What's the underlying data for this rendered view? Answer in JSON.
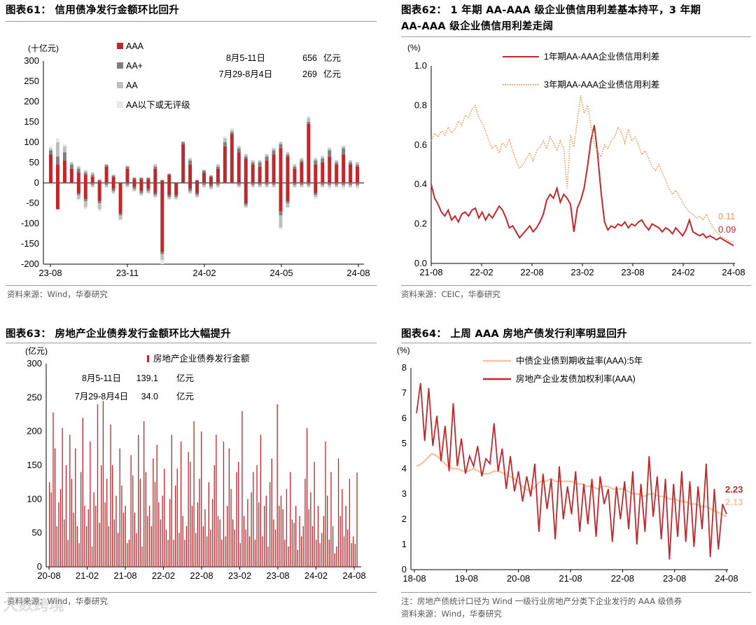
{
  "watermark": "大数跨境",
  "panels": [
    {
      "title": "图表61：  信用债净发行金额环比回升",
      "source": "资料来源：Wind，华泰研究",
      "note": "",
      "chart_data": {
        "type": "bar",
        "stacked": true,
        "unit_label": "(十亿元)",
        "ylim": [
          -200,
          300
        ],
        "yticks": [
          "300",
          "250",
          "200",
          "150",
          "100",
          "50",
          "0",
          "-50",
          "-100",
          "-150",
          "-200"
        ],
        "xtick_labels": [
          "23-08",
          "23-11",
          "24-02",
          "24-05",
          "24-08"
        ],
        "legend": [
          "AAA",
          "AA+",
          "AA",
          "AA以下或无评级"
        ],
        "colors": {
          "AAA": "#c0282c",
          "AA+": "#7f7f7f",
          "AA": "#bfbfbf",
          "AA_low": "#e8e8e8"
        },
        "annotations": [
          {
            "period": "8月5-11日",
            "value": "656",
            "unit": "亿元"
          },
          {
            "period": "7月29-8月4日",
            "value": "269",
            "unit": "亿元"
          }
        ],
        "series_positive": {
          "AAA": [
            70,
            45,
            55,
            35,
            25,
            20,
            15,
            5,
            40,
            15,
            0,
            35,
            10,
            10,
            10,
            35,
            5,
            20,
            0,
            95,
            45,
            5,
            25,
            15,
            35,
            90,
            120,
            75,
            60,
            45,
            40,
            55,
            70,
            85,
            65,
            35,
            50,
            145,
            45,
            50,
            65,
            45,
            70,
            45,
            40
          ],
          "AA+": [
            10,
            20,
            20,
            10,
            10,
            5,
            5,
            2,
            4,
            3,
            0,
            5,
            2,
            2,
            2,
            5,
            2,
            2,
            0,
            5,
            10,
            2,
            5,
            2,
            5,
            10,
            5,
            10,
            5,
            5,
            10,
            10,
            10,
            10,
            5,
            5,
            5,
            5,
            10,
            10,
            15,
            5,
            15,
            5,
            5
          ],
          "AA": [
            5,
            35,
            15,
            5,
            5,
            5,
            5,
            2,
            2,
            2,
            0,
            2,
            2,
            2,
            2,
            5,
            1,
            1,
            0,
            2,
            5,
            1,
            2,
            2,
            5,
            10,
            5,
            5,
            5,
            5,
            5,
            5,
            5,
            5,
            5,
            5,
            5,
            10,
            5,
            5,
            5,
            5,
            5,
            5,
            5
          ],
          "AA_low": [
            5,
            10,
            5,
            3,
            3,
            2,
            2,
            1,
            1,
            1,
            0,
            1,
            1,
            1,
            1,
            2,
            1,
            1,
            0,
            1,
            2,
            1,
            1,
            1,
            2,
            5,
            5,
            3,
            3,
            2,
            2,
            2,
            2,
            2,
            2,
            2,
            2,
            5,
            2,
            3,
            3,
            2,
            2,
            2,
            2
          ]
        },
        "series_negative": {
          "AAA": [
            0,
            65,
            0,
            0,
            25,
            40,
            0,
            45,
            0,
            15,
            75,
            0,
            10,
            20,
            15,
            25,
            170,
            30,
            30,
            0,
            15,
            25,
            0,
            5,
            0,
            0,
            0,
            0,
            50,
            0,
            0,
            0,
            0,
            70,
            45,
            0,
            0,
            0,
            25,
            0,
            0,
            0,
            0,
            0,
            0
          ],
          "AA+": [
            0,
            0,
            0,
            0,
            5,
            5,
            5,
            5,
            5,
            5,
            5,
            5,
            5,
            5,
            5,
            5,
            5,
            5,
            5,
            0,
            5,
            5,
            5,
            5,
            5,
            0,
            0,
            5,
            5,
            5,
            5,
            5,
            5,
            10,
            5,
            5,
            5,
            5,
            5,
            5,
            5,
            5,
            5,
            5,
            5
          ],
          "AA": [
            0,
            0,
            0,
            0,
            10,
            15,
            5,
            15,
            5,
            5,
            10,
            5,
            5,
            5,
            5,
            5,
            15,
            5,
            5,
            0,
            5,
            5,
            5,
            5,
            5,
            0,
            0,
            5,
            5,
            5,
            5,
            5,
            5,
            30,
            10,
            5,
            5,
            5,
            5,
            5,
            5,
            5,
            5,
            5,
            5
          ],
          "AA_low": [
            0,
            0,
            0,
            0,
            3,
            5,
            2,
            5,
            2,
            2,
            3,
            2,
            2,
            2,
            2,
            2,
            10,
            2,
            2,
            0,
            2,
            2,
            2,
            2,
            2,
            0,
            0,
            2,
            2,
            2,
            2,
            2,
            2,
            5,
            2,
            2,
            2,
            2,
            5,
            2,
            5,
            2,
            5,
            2,
            5
          ]
        }
      }
    },
    {
      "title": "图表62：  1 年期  AA-AAA  级企业债信用利差基本持平，3 年期",
      "title2": "AA-AAA 级企业债信用利差走阔",
      "source": "资料来源：CEIC，华泰研究",
      "note": "",
      "chart_data": {
        "type": "line",
        "unit_label": "(%)",
        "ylim": [
          0.0,
          1.0
        ],
        "yticks": [
          "1.0",
          "0.8",
          "0.6",
          "0.4",
          "0.2",
          "0.0"
        ],
        "xtick_labels": [
          "21-08",
          "22-02",
          "22-08",
          "23-02",
          "23-08",
          "24-02",
          "24-08"
        ],
        "series": [
          {
            "name": "1年期AA-AAA企业债信用利差",
            "style": "solid",
            "color": "#c0282c",
            "end_label": "0.09",
            "values": [
              0.4,
              0.33,
              0.3,
              0.26,
              0.24,
              0.27,
              0.22,
              0.24,
              0.21,
              0.25,
              0.26,
              0.24,
              0.27,
              0.28,
              0.23,
              0.26,
              0.22,
              0.25,
              0.23,
              0.26,
              0.29,
              0.27,
              0.23,
              0.18,
              0.19,
              0.16,
              0.13,
              0.15,
              0.17,
              0.19,
              0.16,
              0.18,
              0.21,
              0.25,
              0.32,
              0.35,
              0.33,
              0.38,
              0.31,
              0.35,
              0.33,
              0.3,
              0.16,
              0.28,
              0.32,
              0.38,
              0.49,
              0.62,
              0.7,
              0.55,
              0.36,
              0.21,
              0.17,
              0.19,
              0.18,
              0.2,
              0.19,
              0.21,
              0.18,
              0.2,
              0.19,
              0.21,
              0.22,
              0.19,
              0.17,
              0.2,
              0.19,
              0.18,
              0.16,
              0.18,
              0.17,
              0.15,
              0.18,
              0.16,
              0.14,
              0.17,
              0.22,
              0.16,
              0.15,
              0.14,
              0.15,
              0.13,
              0.14,
              0.13,
              0.12,
              0.13,
              0.12,
              0.11,
              0.1,
              0.09
            ]
          },
          {
            "name": "3年期AA-AAA企业债信用利差",
            "style": "dotted",
            "color": "#e59a5a",
            "end_label": "0.11",
            "values": [
              0.62,
              0.66,
              0.64,
              0.67,
              0.65,
              0.69,
              0.66,
              0.68,
              0.72,
              0.7,
              0.75,
              0.74,
              0.78,
              0.8,
              0.74,
              0.71,
              0.67,
              0.62,
              0.58,
              0.6,
              0.56,
              0.61,
              0.59,
              0.63,
              0.57,
              0.52,
              0.48,
              0.5,
              0.53,
              0.56,
              0.52,
              0.57,
              0.59,
              0.62,
              0.58,
              0.64,
              0.61,
              0.57,
              0.62,
              0.58,
              0.38,
              0.65,
              0.59,
              0.72,
              0.85,
              0.76,
              0.8,
              0.7,
              0.6,
              0.57,
              0.54,
              0.6,
              0.58,
              0.62,
              0.64,
              0.69,
              0.66,
              0.61,
              0.68,
              0.62,
              0.64,
              0.6,
              0.55,
              0.57,
              0.53,
              0.49,
              0.47,
              0.5,
              0.46,
              0.42,
              0.38,
              0.35,
              0.37,
              0.34,
              0.31,
              0.28,
              0.26,
              0.25,
              0.23,
              0.24,
              0.22,
              0.25,
              0.21,
              0.18,
              0.16,
              0.14,
              0.13,
              0.12,
              0.11,
              0.11
            ]
          }
        ]
      }
    },
    {
      "title": "图表63：  房地产企业债券发行金额环比大幅提升",
      "source": "资料来源：Wind，华泰研究",
      "note": "",
      "chart_data": {
        "type": "bar",
        "unit_label": "(亿元)",
        "ylim": [
          0,
          300
        ],
        "yticks": [
          "300",
          "250",
          "200",
          "150",
          "100",
          "50",
          "0"
        ],
        "xtick_labels": [
          "20-08",
          "21-02",
          "21-08",
          "22-02",
          "22-08",
          "23-02",
          "23-08",
          "24-02",
          "24-08"
        ],
        "legend": [
          "房地产企业债券发行金额"
        ],
        "color": "#c0282c",
        "annotations": [
          {
            "period": "8月5-11日",
            "value": "139.1",
            "unit": "亿元"
          },
          {
            "period": "7月29-8月4日",
            "value": "34.0",
            "unit": "亿元"
          }
        ],
        "values": [
          125,
          110,
          228,
          175,
          60,
          95,
          115,
          205,
          70,
          150,
          40,
          195,
          130,
          80,
          175,
          60,
          35,
          140,
          220,
          90,
          60,
          85,
          185,
          30,
          110,
          90,
          240,
          65,
          150,
          245,
          95,
          130,
          60,
          210,
          150,
          70,
          105,
          50,
          175,
          120,
          80,
          90,
          35,
          40,
          165,
          135,
          80,
          50,
          195,
          130,
          30,
          215,
          140,
          75,
          90,
          60,
          160,
          125,
          180,
          95,
          70,
          105,
          145,
          55,
          40,
          100,
          195,
          40,
          120,
          145,
          50,
          185,
          75,
          40,
          60,
          170,
          155,
          90,
          215,
          50,
          95,
          130,
          200,
          60,
          85,
          45,
          125,
          55,
          100,
          150,
          195,
          75,
          70,
          40,
          185,
          45,
          90,
          175,
          115,
          70,
          55,
          140,
          155,
          35,
          230,
          75,
          55,
          100,
          45,
          110,
          140,
          40,
          150,
          95,
          195,
          45,
          90,
          105,
          30,
          125,
          160,
          70,
          55,
          240,
          90,
          105,
          85,
          40,
          115,
          30,
          140,
          70,
          65,
          90,
          25,
          75,
          45,
          60,
          130,
          205,
          85,
          110,
          60,
          155,
          40,
          90,
          35,
          50,
          75,
          185,
          105,
          40,
          140,
          60,
          20,
          30,
          160,
          75,
          115,
          45,
          90,
          55,
          130,
          35,
          45,
          34,
          139
        ]
      }
    },
    {
      "title": "图表64：  上周  AAA  房地产债发行利率明显回升",
      "source": "资料来源：Wind，华泰研究",
      "note": "注：房地产债统计口径为  Wind  一级行业房地产分类下企业发行的  AAA  级债券",
      "chart_data": {
        "type": "line",
        "unit_label": "(%)",
        "ylim": [
          0,
          8
        ],
        "yticks": [
          "8",
          "7",
          "6",
          "5",
          "4",
          "3",
          "2",
          "1",
          "0"
        ],
        "xtick_labels": [
          "18-08",
          "19-08",
          "20-08",
          "21-08",
          "22-08",
          "23-08",
          "24-08"
        ],
        "series": [
          {
            "name": "中债企业债到期收益率(AAA):5年",
            "color": "#f3c6a5",
            "end_label": "2.13",
            "values": [
              4.1,
              4.2,
              4.4,
              4.6,
              4.5,
              4.3,
              4.1,
              4.0,
              4.0,
              3.9,
              3.9,
              4.0,
              3.9,
              3.8,
              3.8,
              3.9,
              3.9,
              3.8,
              3.7,
              3.6,
              3.4,
              3.2,
              3.1,
              3.3,
              3.5,
              3.5,
              3.6,
              3.5,
              3.5,
              3.5,
              3.5,
              3.4,
              3.4,
              3.3,
              3.3,
              3.2,
              3.3,
              3.3,
              3.2,
              3.2,
              3.2,
              3.1,
              3.0,
              3.0,
              2.9,
              3.0,
              3.0,
              2.9,
              2.9,
              2.8,
              2.8,
              2.7,
              2.7,
              2.6,
              2.6,
              2.5,
              2.5,
              2.4,
              2.3,
              2.2,
              2.1
            ]
          },
          {
            "name": "房地产企业发债加权利率(AAA)",
            "color": "#c0282c",
            "end_label": "2.23",
            "values": [
              6.2,
              7.4,
              5.1,
              7.2,
              4.9,
              6.1,
              4.3,
              5.7,
              3.9,
              6.6,
              4.1,
              5.2,
              3.8,
              4.5,
              4.1,
              4.9,
              3.7,
              4.4,
              4.2,
              5.8,
              3.9,
              4.8,
              3.2,
              4.5,
              3.1,
              3.9,
              2.7,
              3.7,
              2.9,
              4.2,
              1.5,
              3.8,
              2.4,
              3.6,
              1.2,
              4.1,
              2.0,
              3.3,
              2.2,
              3.9,
              1.5,
              3.4,
              1.8,
              3.6,
              1.3,
              3.7,
              2.6,
              3.2,
              1.1,
              3.3,
              2.0,
              3.5,
              1.6,
              3.9,
              1.0,
              3.4,
              1.5,
              4.5,
              2.1,
              3.7,
              1.2,
              3.6,
              0.4,
              3.4,
              1.3,
              3.9,
              1.1,
              3.5,
              0.9,
              3.3,
              1.6,
              4.2,
              0.5,
              3.2,
              0.8,
              2.6,
              2.2
            ]
          }
        ]
      }
    }
  ]
}
